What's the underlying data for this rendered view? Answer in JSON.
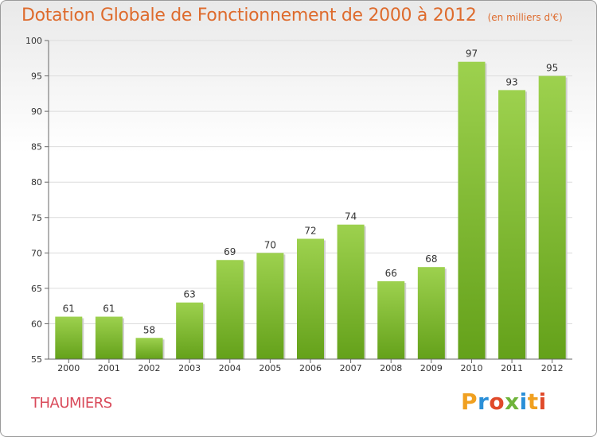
{
  "chart_data": {
    "type": "bar",
    "title": "Dotation Globale de Fonctionnement de 2000 à 2012",
    "subtitle": "(en milliers d'€)",
    "categories": [
      "2000",
      "2001",
      "2002",
      "2003",
      "2004",
      "2005",
      "2006",
      "2007",
      "2008",
      "2009",
      "2010",
      "2011",
      "2012"
    ],
    "values": [
      61,
      61,
      58,
      63,
      69,
      70,
      72,
      74,
      66,
      68,
      97,
      93,
      95
    ],
    "ylim": [
      55,
      100
    ],
    "yticks": [
      55,
      60,
      65,
      70,
      75,
      80,
      85,
      90,
      95,
      100
    ],
    "grid": true,
    "colors": {
      "bar_top": "#9dd14e",
      "bar_bottom": "#64a11a",
      "grid": "#dcdcdc"
    }
  },
  "commune": "THAUMIERS",
  "logo": {
    "letters": [
      "P",
      "r",
      "o",
      "x",
      "i",
      "t",
      "i"
    ],
    "colors": [
      "#f0a020",
      "#2a8fd8",
      "#e04a2a",
      "#6fb43a",
      "#2a8fd8",
      "#f0a020",
      "#e04a2a"
    ]
  }
}
